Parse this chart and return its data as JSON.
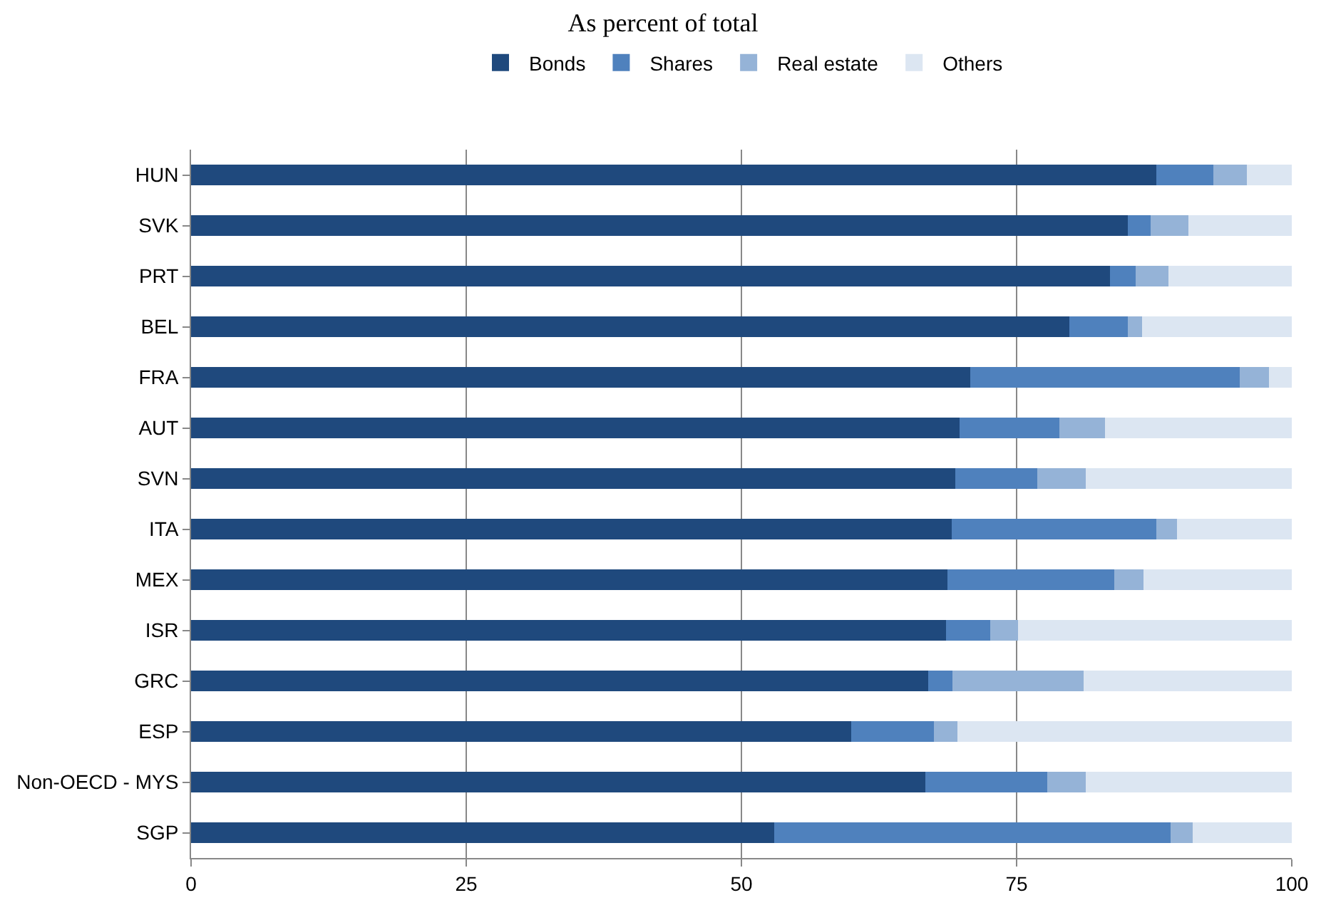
{
  "chart_data": {
    "type": "bar",
    "title": "As percent of total",
    "orientation": "horizontal",
    "stacked": true,
    "categories": [
      "HUN",
      "SVK",
      "PRT",
      "BEL",
      "FRA",
      "AUT",
      "SVN",
      "ITA",
      "MEX",
      "ISR",
      "GRC",
      "ESP",
      "Non-OECD - MYS",
      "SGP"
    ],
    "series": [
      {
        "name": "Bonds",
        "color": "#1f497d",
        "values": [
          87.7,
          85.1,
          83.5,
          79.8,
          70.8,
          69.8,
          69.4,
          69.1,
          68.7,
          68.6,
          67.0,
          60.0,
          66.7,
          53.0
        ]
      },
      {
        "name": "Shares",
        "color": "#4f81bd",
        "values": [
          5.2,
          2.1,
          2.3,
          5.3,
          24.5,
          9.1,
          7.5,
          18.6,
          15.2,
          4.0,
          2.2,
          7.5,
          11.1,
          36.0
        ]
      },
      {
        "name": "Real estate",
        "color": "#95b3d7",
        "values": [
          3.0,
          3.4,
          3.0,
          1.3,
          2.6,
          4.1,
          4.4,
          1.9,
          2.6,
          2.5,
          11.9,
          2.1,
          3.5,
          2.0
        ]
      },
      {
        "name": "Others",
        "color": "#dce6f2",
        "values": [
          4.1,
          9.4,
          11.2,
          13.6,
          2.1,
          17.0,
          18.7,
          10.4,
          13.5,
          24.9,
          18.9,
          30.4,
          18.7,
          9.0
        ]
      }
    ],
    "xlim": [
      0,
      100
    ],
    "xticks": [
      0,
      25,
      50,
      75,
      100
    ],
    "grid": "x",
    "legend": "top"
  }
}
